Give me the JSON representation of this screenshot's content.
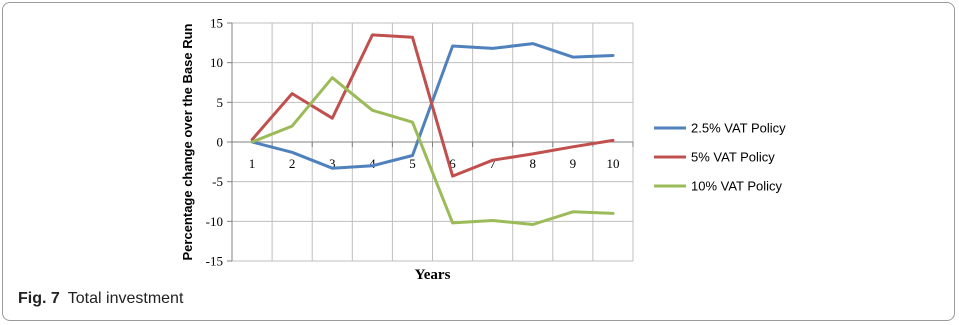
{
  "chart_data": {
    "type": "line",
    "x": [
      1,
      2,
      3,
      4,
      5,
      6,
      7,
      8,
      9,
      10
    ],
    "series": [
      {
        "name": "2.5% VAT Policy",
        "color": "#4f81bd",
        "values": [
          0.0,
          -1.3,
          -3.3,
          -3.0,
          -1.7,
          12.1,
          11.8,
          12.4,
          10.7,
          10.9
        ]
      },
      {
        "name": "5% VAT Policy",
        "color": "#c0504d",
        "values": [
          0.3,
          6.1,
          3.0,
          13.5,
          13.2,
          -4.3,
          -2.3,
          -1.5,
          -0.6,
          0.2
        ]
      },
      {
        "name": "10% VAT Policy",
        "color": "#9bbb59",
        "values": [
          0.0,
          2.0,
          8.1,
          4.0,
          2.5,
          -10.2,
          -9.9,
          -10.4,
          -8.8,
          -9.0
        ]
      }
    ],
    "title": "",
    "xlabel": "Years",
    "ylabel": "Percentage change over the Base Run",
    "ylim": [
      -15,
      15
    ],
    "yticks": [
      -15,
      -10,
      -5,
      0,
      5,
      10,
      15
    ],
    "ytick_labels": [
      "-15",
      "-10",
      "-5",
      "0",
      "5",
      "10",
      "15"
    ],
    "xtick_labels": [
      "1",
      "2",
      "3",
      "4",
      "5",
      "6",
      "7",
      "8",
      "9",
      "10"
    ],
    "grid": "both",
    "legend": "right"
  },
  "caption": {
    "number": "Fig. 7",
    "text": "Total investment"
  }
}
